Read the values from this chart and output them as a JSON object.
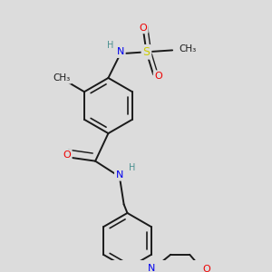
{
  "bg_color": "#dcdcdc",
  "bond_color": "#1a1a1a",
  "bond_width": 1.4,
  "atom_colors": {
    "C": "#1a1a1a",
    "H": "#4a9090",
    "N": "#0000ee",
    "O": "#ee0000",
    "S": "#cccc00"
  },
  "font_size": 8.0
}
